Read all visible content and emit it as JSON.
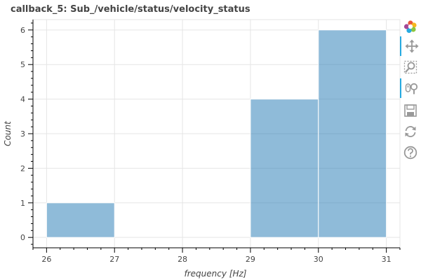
{
  "chart_data": {
    "type": "bar",
    "title": "callback_5: Sub_/vehicle/status/velocity_status",
    "xlabel": "frequency [Hz]",
    "ylabel": "Count",
    "bins": [
      {
        "x0": 26,
        "x1": 27,
        "count": 1
      },
      {
        "x0": 27,
        "x1": 28,
        "count": 0
      },
      {
        "x0": 28,
        "x1": 29,
        "count": 0
      },
      {
        "x0": 29,
        "x1": 30,
        "count": 4
      },
      {
        "x0": 30,
        "x1": 31,
        "count": 6
      }
    ],
    "xlim": [
      25.8,
      31.2
    ],
    "ylim": [
      -0.3,
      6.3
    ],
    "xticks": [
      26,
      27,
      28,
      29,
      30,
      31
    ],
    "yticks": [
      0,
      1,
      2,
      3,
      4,
      5,
      6
    ],
    "bar_color": "#1f77b4",
    "bar_alpha": 0.5,
    "grid": true
  },
  "toolbar": {
    "logo": "bokeh-logo-icon",
    "tools": [
      {
        "name": "pan-tool",
        "icon": "move-icon",
        "active": true
      },
      {
        "name": "box-zoom-tool",
        "icon": "box-zoom-icon",
        "active": false
      },
      {
        "name": "wheel-zoom-tool",
        "icon": "wheel-zoom-icon",
        "active": true
      },
      {
        "name": "save-tool",
        "icon": "save-icon",
        "active": false
      },
      {
        "name": "reset-tool",
        "icon": "reset-icon",
        "active": false
      },
      {
        "name": "help-tool",
        "icon": "help-icon",
        "active": false
      }
    ]
  }
}
